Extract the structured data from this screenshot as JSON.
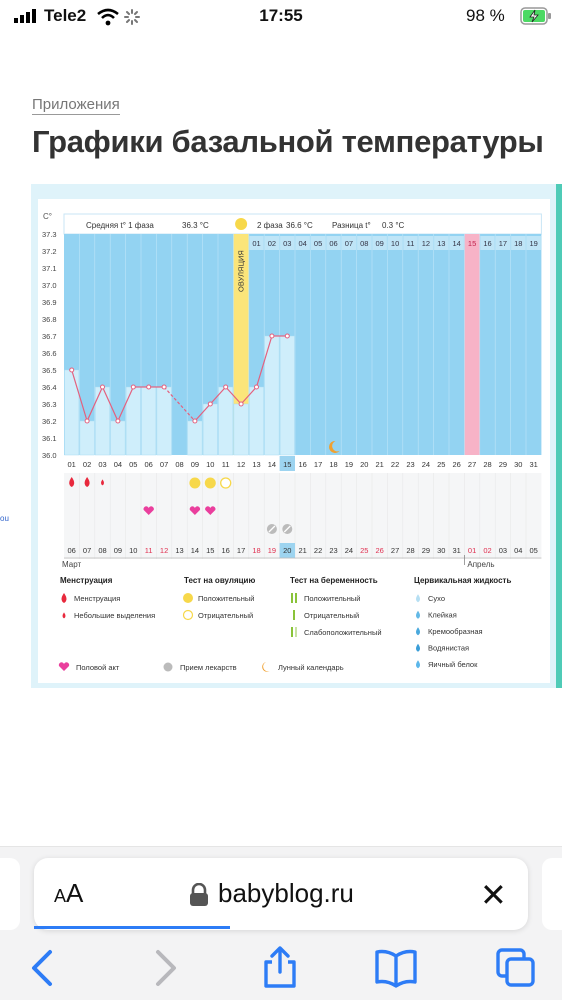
{
  "status_bar": {
    "carrier": "Tele2",
    "time": "17:55",
    "battery": "98 %"
  },
  "breadcrumb": "Приложения",
  "title": "Графики базальной температуры",
  "browser": {
    "text_size": "AA",
    "url": "babyblog.ru",
    "close": "✕"
  },
  "chart_data": {
    "type": "line",
    "ylabel": "C°",
    "ylim": [
      36.0,
      37.3
    ],
    "y_ticks": [
      "37.3",
      "37.2",
      "37.1",
      "37.0",
      "36.9",
      "36.8",
      "36.7",
      "36.6",
      "36.5",
      "36.4",
      "36.3",
      "36.2",
      "36.1",
      "36.0"
    ],
    "header": {
      "phase1": "Средняя t° 1 фаза",
      "phase1_value": "36.3 °C",
      "phase2": "2 фаза",
      "phase2_value": "36.6 °C",
      "diff": "Разница t°",
      "diff_value": "0.3 °C"
    },
    "ovulation_label": "ОВУЛЯЦИЯ",
    "cycle_days": [
      "01",
      "02",
      "03",
      "04",
      "05",
      "06",
      "07",
      "08",
      "09",
      "10",
      "11",
      "12",
      "13",
      "14",
      "15",
      "16",
      "17",
      "18",
      "19",
      "20",
      "21",
      "22",
      "23",
      "24",
      "25",
      "26",
      "27",
      "28",
      "29",
      "30",
      "31"
    ],
    "ovulation_day": "12",
    "luteal_days": [
      "01",
      "02",
      "03",
      "04",
      "05",
      "06",
      "07",
      "08",
      "09",
      "10",
      "11",
      "12",
      "13",
      "14",
      "15",
      "16",
      "17",
      "18",
      "19"
    ],
    "highlight_luteal_day": "15",
    "today_cycle_day": "15",
    "dates": [
      "06",
      "07",
      "08",
      "09",
      "10",
      "11",
      "12",
      "13",
      "14",
      "15",
      "16",
      "17",
      "18",
      "19",
      "20",
      "21",
      "22",
      "23",
      "24",
      "25",
      "26",
      "27",
      "28",
      "29",
      "30",
      "31",
      "01",
      "02",
      "03",
      "04",
      "05"
    ],
    "weekend_dates": [
      "11",
      "12",
      "18",
      "19",
      "25",
      "26",
      "01",
      "02"
    ],
    "today_date": "20",
    "months": [
      "Март",
      "Апрель"
    ],
    "temperatures": [
      36.5,
      36.2,
      36.4,
      36.2,
      36.4,
      36.4,
      36.4,
      null,
      36.2,
      36.3,
      36.4,
      36.3,
      36.4,
      36.7,
      36.7
    ],
    "menstruation_days": [
      1,
      2,
      3
    ],
    "ovulation_test_positive_days": [
      9,
      10
    ],
    "ovulation_test_negative_days": [
      11
    ],
    "intercourse_days": [
      6,
      9,
      10
    ],
    "medication_days": [
      14,
      15
    ],
    "moon_day": 18,
    "legend": {
      "menstruation": {
        "title": "Менструация",
        "items": [
          "Менструация",
          "Небольшие выделения"
        ]
      },
      "ovulation_test": {
        "title": "Тест на овуляцию",
        "items": [
          "Положительный",
          "Отрицательный"
        ]
      },
      "pregnancy_test": {
        "title": "Тест на беременность",
        "items": [
          "Положительный",
          "Отрицательный",
          "Слабоположительный"
        ]
      },
      "cervical": {
        "title": "Цервикальная жидкость",
        "items": [
          "Сухо",
          "Клейкая",
          "Кремообразная",
          "Водянистая",
          "Яичный белок"
        ]
      },
      "bottom": [
        "Половой акт",
        "Прием лекарств",
        "Лунный календарь"
      ]
    },
    "colors": {
      "chart_bg": "#93d3f2",
      "bar": "#cfeefb",
      "line": "#e4607e",
      "ovulation": "#fbe57a",
      "highlight": "#f7b3c7",
      "today": "#9dd4f0",
      "red": "#e8293d",
      "yellow": "#f7d84a",
      "pink": "#ea3f9d",
      "moon": "#f0a030"
    }
  }
}
